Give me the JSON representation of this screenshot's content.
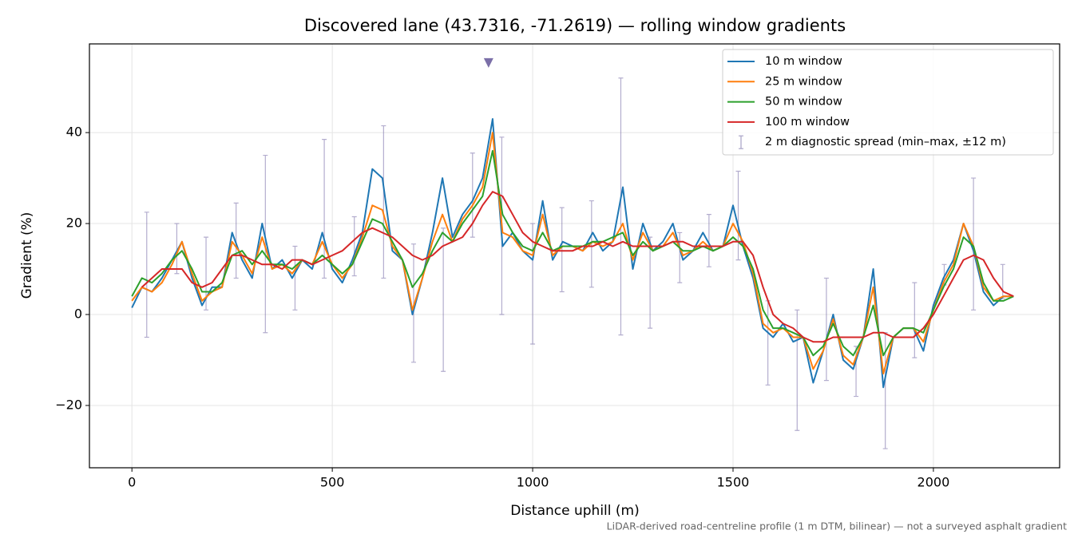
{
  "chart_data": {
    "type": "line",
    "title": "Discovered lane (43.7316, -71.2619) — rolling window gradients",
    "xlabel": "Distance uphill (m)",
    "ylabel": "Gradient (%)",
    "footnote": "LiDAR-derived road-centreline profile (1 m DTM, bilinear) — not a surveyed asphalt gradient",
    "xlim": [
      -106,
      2315
    ],
    "ylim": [
      -33.7,
      59.5
    ],
    "xticks": [
      0,
      500,
      1000,
      1500,
      2000
    ],
    "yticks": [
      {
        "value": -20,
        "label": "−20"
      },
      0,
      20,
      40
    ],
    "grid": true,
    "legend": "upper right",
    "x": [
      0,
      25,
      50,
      75,
      100,
      125,
      150,
      175,
      200,
      225,
      250,
      275,
      300,
      325,
      350,
      375,
      400,
      425,
      450,
      475,
      500,
      525,
      550,
      575,
      600,
      625,
      650,
      675,
      700,
      725,
      750,
      775,
      800,
      825,
      850,
      875,
      900,
      925,
      950,
      975,
      1000,
      1025,
      1050,
      1075,
      1100,
      1125,
      1150,
      1175,
      1200,
      1225,
      1250,
      1275,
      1300,
      1325,
      1350,
      1375,
      1400,
      1425,
      1450,
      1475,
      1500,
      1525,
      1550,
      1575,
      1600,
      1625,
      1650,
      1675,
      1700,
      1725,
      1750,
      1775,
      1800,
      1825,
      1850,
      1875,
      1900,
      1925,
      1950,
      1975,
      2000,
      2025,
      2050,
      2075,
      2100,
      2125,
      2150,
      2175,
      2200
    ],
    "series": [
      {
        "name": "10 m window",
        "color": "#1f77b4",
        "values": [
          1.5,
          6,
          5,
          8,
          12,
          16,
          8,
          2,
          6,
          6,
          18,
          12,
          8,
          20,
          10,
          12,
          8,
          12,
          10,
          18,
          10,
          7,
          12,
          18,
          32,
          30,
          14,
          12,
          0,
          8,
          18,
          30,
          17,
          22,
          25,
          30,
          43,
          15,
          18,
          14,
          12,
          25,
          12,
          16,
          15,
          14,
          18,
          14,
          16,
          28,
          10,
          20,
          14,
          16,
          20,
          12,
          14,
          18,
          14,
          15,
          24,
          15,
          8,
          -3,
          -5,
          -2,
          -6,
          -5,
          -15,
          -8,
          0,
          -10,
          -12,
          -5,
          10,
          -16,
          -5,
          -3,
          -3,
          -8,
          2,
          8,
          12,
          20,
          14,
          5,
          2,
          4,
          4
        ]
      },
      {
        "name": "25 m window",
        "color": "#ff7f0e",
        "values": [
          3,
          6,
          5,
          7,
          11,
          16,
          9,
          3,
          5,
          6,
          16,
          13,
          9,
          17,
          10,
          11,
          9,
          12,
          11,
          16,
          11,
          8,
          11,
          17,
          24,
          23,
          15,
          12,
          1,
          8,
          16,
          22,
          16,
          21,
          24,
          28,
          40,
          18,
          17,
          14,
          13,
          22,
          13,
          15,
          15,
          14,
          16,
          15,
          16,
          20,
          12,
          18,
          14,
          15,
          18,
          13,
          14,
          16,
          14,
          15,
          20,
          16,
          9,
          -2,
          -4,
          -3,
          -5,
          -5,
          -12,
          -8,
          -1,
          -9,
          -11,
          -5,
          6,
          -13,
          -5,
          -3,
          -3,
          -6,
          1,
          7,
          11,
          20,
          15,
          6,
          3,
          4,
          4
        ]
      },
      {
        "name": "50 m window",
        "color": "#2ca02c",
        "values": [
          4,
          8,
          7,
          9,
          12,
          14,
          10,
          5,
          5,
          7,
          13,
          14,
          11,
          14,
          11,
          11,
          10,
          12,
          11,
          13,
          11,
          9,
          11,
          16,
          21,
          20,
          16,
          12,
          6,
          9,
          14,
          18,
          16,
          20,
          23,
          26,
          36,
          22,
          18,
          15,
          14,
          18,
          14,
          15,
          15,
          15,
          16,
          16,
          17,
          18,
          13,
          16,
          14,
          15,
          16,
          14,
          14,
          15,
          14,
          15,
          17,
          15,
          10,
          1,
          -3,
          -3,
          -4,
          -5,
          -9,
          -7,
          -2,
          -7,
          -9,
          -5,
          2,
          -9,
          -5,
          -3,
          -3,
          -4,
          1,
          6,
          10,
          17,
          15,
          7,
          3,
          3,
          4
        ]
      },
      {
        "name": "100 m window",
        "color": "#d62728",
        "values": [
          null,
          6,
          8,
          10,
          10,
          10,
          7,
          6,
          7,
          10,
          13,
          13,
          12,
          11,
          11,
          10,
          12,
          12,
          11,
          12,
          13,
          14,
          16,
          18,
          19,
          18,
          17,
          15,
          13,
          12,
          13,
          15,
          16,
          17,
          20,
          24,
          27,
          26,
          22,
          18,
          16,
          15,
          14,
          14,
          14,
          15,
          15,
          16,
          15,
          16,
          15,
          15,
          15,
          15,
          16,
          16,
          15,
          15,
          15,
          15,
          16,
          16,
          13,
          6,
          0,
          -2,
          -3,
          -5,
          -6,
          -6,
          -5,
          -5,
          -5,
          -5,
          -4,
          -4,
          -5,
          -5,
          -5,
          -3,
          0,
          4,
          8,
          12,
          13,
          12,
          8,
          5,
          4
        ]
      }
    ],
    "errorbars": {
      "name": "2 m diagnostic spread (min–max, ±12 m)",
      "color": "#8077ad",
      "x": [
        37,
        112,
        185,
        260,
        333,
        407,
        480,
        555,
        628,
        703,
        777,
        850,
        923,
        1000,
        1073,
        1147,
        1220,
        1293,
        1367,
        1440,
        1513,
        1587,
        1660,
        1733,
        1807,
        1880,
        1953,
        2027,
        2100,
        2173
      ],
      "low": [
        -5,
        9,
        1,
        8,
        -4,
        1,
        8,
        8.5,
        8,
        -10.5,
        -12.5,
        17,
        0,
        -6.5,
        5,
        6,
        -4.5,
        -3,
        7,
        10.5,
        12,
        -15.5,
        -25.5,
        -14.5,
        -18,
        -29.5,
        -9.5,
        6.5,
        1,
        3.5
      ],
      "high": [
        22.5,
        20,
        17,
        24.5,
        35,
        15,
        38.5,
        21.5,
        41.5,
        15.5,
        19,
        35.5,
        39,
        20,
        23.5,
        25,
        52,
        17,
        18,
        22,
        31.5,
        3,
        1,
        8,
        -7,
        -4,
        7,
        11,
        30,
        11
      ]
    },
    "peak_marker": {
      "x": 890,
      "y": 55.3,
      "color": "#7b6fa8"
    }
  }
}
